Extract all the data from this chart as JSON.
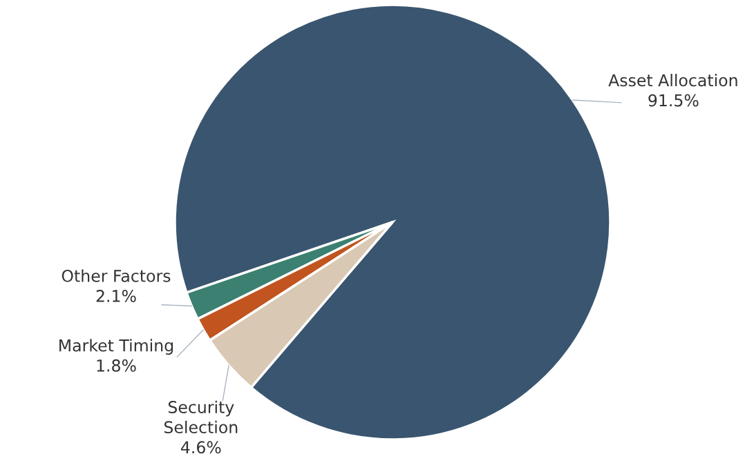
{
  "chart_data": {
    "type": "pie",
    "categories": [
      "Asset Allocation",
      "Other Factors",
      "Market Timing",
      "Security\nSelection"
    ],
    "values": [
      91.5,
      2.1,
      1.8,
      4.6
    ],
    "value_labels": [
      "91.5%",
      "2.1%",
      "1.8%",
      "4.6%"
    ],
    "colors": [
      "#3a556f",
      "#3b8070",
      "#c1541f",
      "#d9c8b3"
    ],
    "legend": false
  }
}
